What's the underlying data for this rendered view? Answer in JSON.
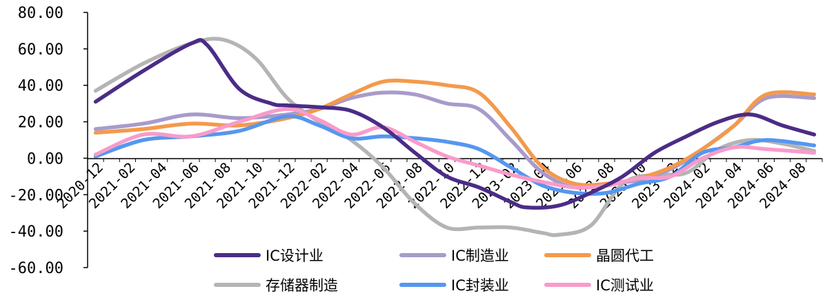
{
  "chart_data": {
    "type": "line",
    "title": "",
    "xlabel": "",
    "ylabel": "",
    "ylim": [
      -60,
      80
    ],
    "yticks": [
      "80.00",
      "60.00",
      "40.00",
      "20.00",
      "0.00",
      "-20.00",
      "-40.00",
      "-60.00"
    ],
    "ytick_values": [
      80,
      60,
      40,
      20,
      0,
      -20,
      -40,
      -60
    ],
    "x_tick_labels": [
      "2020-12",
      "2021-02",
      "2021-04",
      "2021-06",
      "2021-08",
      "2021-10",
      "2021-12",
      "2022-02",
      "2022-04",
      "2022-06",
      "2022-08",
      "2022-10",
      "2022-12",
      "2023-02",
      "2023-04",
      "2023-06",
      "2023-08",
      "2023-10",
      "2023-12",
      "2024-02",
      "2024-04",
      "2024-06",
      "2024-08"
    ],
    "x_tick_index": [
      0,
      2,
      4,
      6,
      8,
      10,
      12,
      14,
      16,
      18,
      20,
      22,
      24,
      26,
      28,
      30,
      32,
      34,
      36,
      38,
      40,
      42,
      44
    ],
    "x_count": 46,
    "grid": false,
    "legend_position": "bottom",
    "series": [
      {
        "name": "IC设计业",
        "color": "#4B2C86",
        "points": [
          [
            0,
            31
          ],
          [
            3,
            48
          ],
          [
            6,
            63
          ],
          [
            7,
            62
          ],
          [
            9,
            38
          ],
          [
            11,
            30
          ],
          [
            12,
            29
          ],
          [
            14,
            28
          ],
          [
            16,
            26
          ],
          [
            18,
            17
          ],
          [
            20,
            3
          ],
          [
            22,
            -10
          ],
          [
            24,
            -16
          ],
          [
            26,
            -24
          ],
          [
            27,
            -27
          ],
          [
            29,
            -26
          ],
          [
            31,
            -19
          ],
          [
            33,
            -10
          ],
          [
            35,
            3
          ],
          [
            37,
            12
          ],
          [
            39,
            20
          ],
          [
            41,
            24
          ],
          [
            43,
            18
          ],
          [
            45,
            13
          ]
        ]
      },
      {
        "name": "IC制造业",
        "color": "#A89BCB",
        "points": [
          [
            0,
            16
          ],
          [
            3,
            19
          ],
          [
            6,
            24
          ],
          [
            9,
            22
          ],
          [
            12,
            24
          ],
          [
            14,
            27
          ],
          [
            16,
            33
          ],
          [
            18,
            36
          ],
          [
            20,
            35
          ],
          [
            22,
            30
          ],
          [
            24,
            27
          ],
          [
            26,
            10
          ],
          [
            28,
            -8
          ],
          [
            30,
            -16
          ],
          [
            32,
            -14
          ],
          [
            34,
            -12
          ],
          [
            36,
            -6
          ],
          [
            38,
            5
          ],
          [
            40,
            18
          ],
          [
            42,
            33
          ],
          [
            45,
            33
          ]
        ]
      },
      {
        "name": "晶圆代工",
        "color": "#F39A4C",
        "points": [
          [
            0,
            14
          ],
          [
            3,
            16
          ],
          [
            6,
            19
          ],
          [
            9,
            18
          ],
          [
            12,
            22
          ],
          [
            14,
            27
          ],
          [
            16,
            35
          ],
          [
            18,
            42
          ],
          [
            20,
            42
          ],
          [
            22,
            40
          ],
          [
            24,
            36
          ],
          [
            26,
            17
          ],
          [
            28,
            -5
          ],
          [
            30,
            -14
          ],
          [
            32,
            -14
          ],
          [
            34,
            -11
          ],
          [
            36,
            -5
          ],
          [
            38,
            5
          ],
          [
            40,
            18
          ],
          [
            42,
            35
          ],
          [
            45,
            35
          ]
        ]
      },
      {
        "name": "存储器制造",
        "color": "#B4B4B4",
        "points": [
          [
            0,
            37
          ],
          [
            3,
            52
          ],
          [
            6,
            63
          ],
          [
            8,
            65
          ],
          [
            10,
            55
          ],
          [
            12,
            33
          ],
          [
            14,
            20
          ],
          [
            16,
            10
          ],
          [
            18,
            -5
          ],
          [
            20,
            -25
          ],
          [
            22,
            -38
          ],
          [
            24,
            -38
          ],
          [
            26,
            -38
          ],
          [
            28,
            -41
          ],
          [
            29,
            -42
          ],
          [
            31,
            -37
          ],
          [
            33,
            -14
          ],
          [
            35,
            -9
          ],
          [
            37,
            -8
          ],
          [
            39,
            5
          ],
          [
            41,
            10
          ],
          [
            43,
            8
          ],
          [
            45,
            4
          ]
        ]
      },
      {
        "name": "IC封装业",
        "color": "#5597F0",
        "points": [
          [
            0,
            1
          ],
          [
            3,
            10
          ],
          [
            6,
            12
          ],
          [
            9,
            15
          ],
          [
            12,
            23
          ],
          [
            14,
            18
          ],
          [
            16,
            11
          ],
          [
            18,
            12
          ],
          [
            20,
            11
          ],
          [
            22,
            9
          ],
          [
            24,
            5
          ],
          [
            26,
            -5
          ],
          [
            28,
            -15
          ],
          [
            30,
            -19
          ],
          [
            32,
            -19
          ],
          [
            34,
            -14
          ],
          [
            36,
            -10
          ],
          [
            38,
            3
          ],
          [
            40,
            6
          ],
          [
            42,
            10
          ],
          [
            45,
            7
          ]
        ]
      },
      {
        "name": "IC测试业",
        "color": "#F99BCB",
        "points": [
          [
            0,
            2
          ],
          [
            3,
            13
          ],
          [
            6,
            12
          ],
          [
            9,
            20
          ],
          [
            12,
            27
          ],
          [
            14,
            21
          ],
          [
            16,
            13
          ],
          [
            18,
            17
          ],
          [
            20,
            9
          ],
          [
            22,
            1
          ],
          [
            24,
            -4
          ],
          [
            26,
            -9
          ],
          [
            28,
            -13
          ],
          [
            30,
            -16
          ],
          [
            32,
            -15
          ],
          [
            34,
            -11
          ],
          [
            36,
            -10
          ],
          [
            38,
            0
          ],
          [
            40,
            6
          ],
          [
            42,
            5
          ],
          [
            45,
            3
          ]
        ]
      }
    ]
  }
}
